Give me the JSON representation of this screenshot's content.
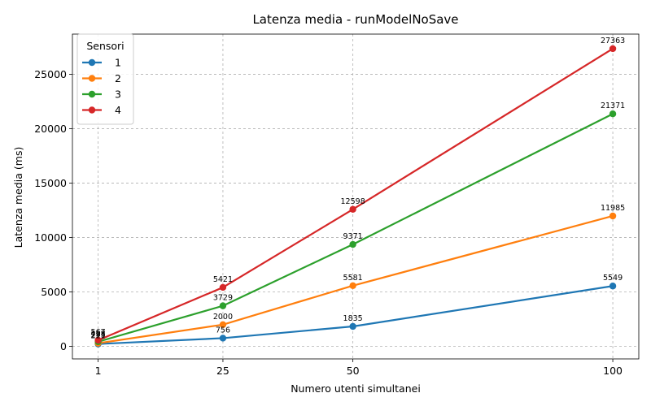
{
  "chart_data": {
    "type": "line",
    "title": "Latenza media - runModelNoSave",
    "xlabel": "Numero utenti simultanei",
    "ylabel": "Latenza media (ms)",
    "x": [
      1,
      25,
      50,
      100
    ],
    "x_ticks": [
      "1",
      "25",
      "50",
      "100"
    ],
    "y_ticks": [
      0,
      5000,
      10000,
      15000,
      20000,
      25000
    ],
    "xlim": [
      -3.95,
      105
    ],
    "ylim": [
      -1150,
      28700
    ],
    "grid": true,
    "legend": {
      "title": "Sensori",
      "placement": "top-left"
    },
    "series": [
      {
        "name": "1",
        "color": "#1f77b4",
        "values": [
          221,
          756,
          1835,
          5549
        ],
        "labels": [
          "221",
          "756",
          "1835",
          "5549"
        ]
      },
      {
        "name": "2",
        "color": "#ff7f0e",
        "values": [
          293,
          2000,
          5581,
          11985
        ],
        "labels": [
          "293",
          "2000",
          "5581",
          "11985"
        ]
      },
      {
        "name": "3",
        "color": "#2ca02c",
        "values": [
          428,
          3729,
          9371,
          21371
        ],
        "labels": [
          "428",
          "3729",
          "9371",
          "21371"
        ]
      },
      {
        "name": "4",
        "color": "#d62728",
        "values": [
          567,
          5421,
          12598,
          27363
        ],
        "labels": [
          "567",
          "5421",
          "12598",
          "27363"
        ]
      }
    ]
  }
}
